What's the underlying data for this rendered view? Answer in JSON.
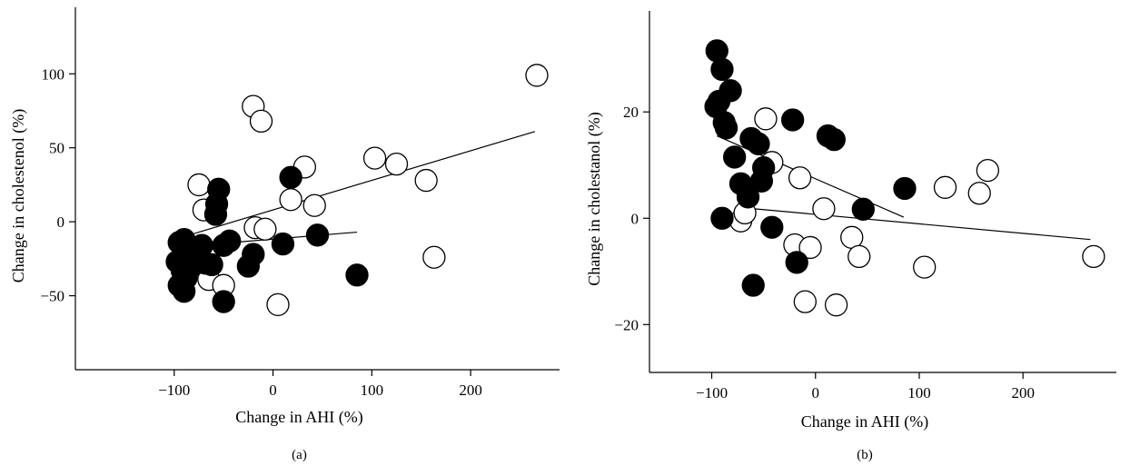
{
  "chart_data": [
    {
      "type": "scatter",
      "panel_label": "(a)",
      "xlabel": "Change in AHI (%)",
      "ylabel": "Change in cholestenol (%)",
      "xlim": [
        -200,
        290
      ],
      "ylim": [
        -100,
        145
      ],
      "xticks": [
        -100,
        0,
        100,
        200
      ],
      "xtick_labels": [
        "−100",
        "0",
        "100",
        "200"
      ],
      "yticks": [
        -50,
        0,
        50,
        100
      ],
      "ytick_labels": [
        "−50",
        "0",
        "50",
        "100"
      ],
      "series": [
        {
          "fill": "#000000",
          "points": [
            [
              -95,
              -14
            ],
            [
              -90,
              -12
            ],
            [
              -85,
              -20
            ],
            [
              -80,
              -24
            ],
            [
              -75,
              -18
            ],
            [
              -97,
              -27
            ],
            [
              -92,
              -33
            ],
            [
              -88,
              -38
            ],
            [
              -82,
              -30
            ],
            [
              -78,
              -22
            ],
            [
              -72,
              -16
            ],
            [
              -68,
              -28
            ],
            [
              -62,
              -29
            ],
            [
              -95,
              -43
            ],
            [
              -90,
              -47
            ],
            [
              -55,
              22
            ],
            [
              -57,
              12
            ],
            [
              -58,
              5
            ],
            [
              -50,
              -16
            ],
            [
              -44,
              -13
            ],
            [
              -50,
              -54
            ],
            [
              -25,
              -30
            ],
            [
              -20,
              -22
            ],
            [
              10,
              -15
            ],
            [
              18,
              30
            ],
            [
              45,
              -9
            ],
            [
              85,
              -36
            ]
          ],
          "fit": [
            [
              -95,
              -17
            ],
            [
              85,
              -7
            ]
          ]
        },
        {
          "fill": "#ffffff",
          "points": [
            [
              -75,
              25
            ],
            [
              -70,
              8
            ],
            [
              -65,
              -39
            ],
            [
              -50,
              -43
            ],
            [
              -20,
              78
            ],
            [
              -12,
              68
            ],
            [
              -18,
              -4
            ],
            [
              -8,
              -5
            ],
            [
              5,
              -56
            ],
            [
              18,
              15
            ],
            [
              32,
              37
            ],
            [
              42,
              11
            ],
            [
              103,
              43
            ],
            [
              125,
              39
            ],
            [
              155,
              28
            ],
            [
              163,
              -24
            ],
            [
              267,
              99
            ]
          ],
          "fit": [
            [
              -80,
              -8
            ],
            [
              265,
              61
            ]
          ]
        }
      ]
    },
    {
      "type": "scatter",
      "panel_label": "(b)",
      "xlabel": "Change in AHI (%)",
      "ylabel": "Change in cholestanol (%)",
      "xlim": [
        -160,
        290
      ],
      "ylim": [
        -29,
        39
      ],
      "xticks": [
        -100,
        0,
        100,
        200
      ],
      "xtick_labels": [
        "−100",
        "0",
        "100",
        "200"
      ],
      "yticks": [
        -20,
        0,
        20
      ],
      "ytick_labels": [
        "−20",
        "0",
        "20"
      ],
      "series": [
        {
          "fill": "#000000",
          "points": [
            [
              -95,
              31.5
            ],
            [
              -90,
              28
            ],
            [
              -82,
              24
            ],
            [
              -93,
              22
            ],
            [
              -96,
              21
            ],
            [
              -88,
              18
            ],
            [
              -86,
              17
            ],
            [
              -90,
              0
            ],
            [
              -78,
              11.5
            ],
            [
              -72,
              6.5
            ],
            [
              -65,
              4
            ],
            [
              -62,
              15
            ],
            [
              -55,
              14
            ],
            [
              -52,
              7
            ],
            [
              -50,
              9.5
            ],
            [
              -42,
              -1.7
            ],
            [
              -60,
              -12.6
            ],
            [
              -22,
              18.5
            ],
            [
              -18,
              -8.3
            ],
            [
              12,
              15.5
            ],
            [
              18,
              14.8
            ],
            [
              46,
              1.7
            ],
            [
              86,
              5.6
            ]
          ],
          "fit": [
            [
              -95,
              15.5
            ],
            [
              85,
              0.2
            ]
          ]
        },
        {
          "fill": "#ffffff",
          "points": [
            [
              -72,
              -0.5
            ],
            [
              -68,
              1
            ],
            [
              -48,
              18.7
            ],
            [
              -42,
              10.5
            ],
            [
              -20,
              -5
            ],
            [
              -15,
              7.6
            ],
            [
              -5,
              -5.5
            ],
            [
              -10,
              -15.7
            ],
            [
              8,
              1.8
            ],
            [
              20,
              -16.3
            ],
            [
              35,
              -3.6
            ],
            [
              42,
              -7.2
            ],
            [
              105,
              -9.2
            ],
            [
              125,
              5.8
            ],
            [
              158,
              4.7
            ],
            [
              166,
              9
            ],
            [
              268,
              -7.2
            ]
          ],
          "fit": [
            [
              -60,
              1.8
            ],
            [
              265,
              -4
            ]
          ]
        }
      ]
    }
  ]
}
